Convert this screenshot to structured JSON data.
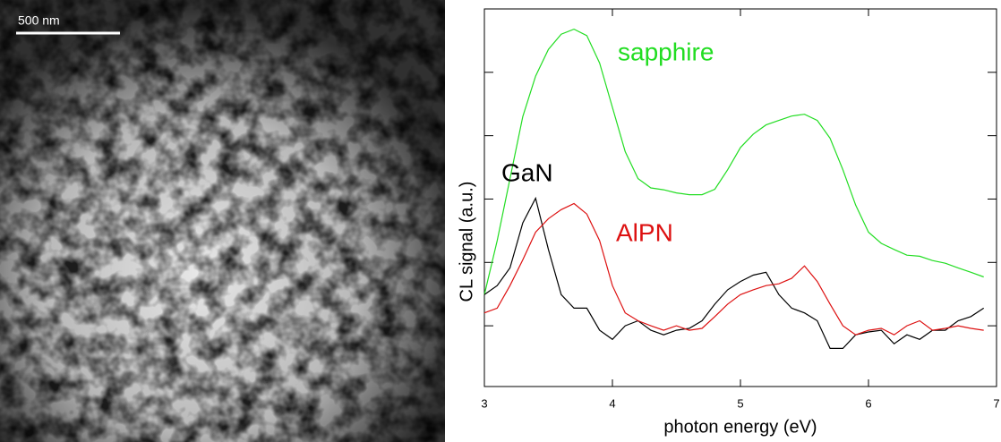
{
  "image": {
    "scale_bar": "500 nm"
  },
  "chart_data": {
    "type": "line",
    "x_label": "photon energy  (eV)",
    "y_label": "CL signal (a.u.)",
    "log_y": true,
    "xlim": [
      3,
      7
    ],
    "xticks": [
      3,
      4,
      5,
      6,
      7
    ],
    "ylim": [
      0.11,
      100000
    ],
    "yticks": [
      1,
      10,
      100,
      1000,
      10000
    ],
    "x": [
      3.0,
      3.1,
      3.2,
      3.3,
      3.4,
      3.5,
      3.6,
      3.7,
      3.8,
      3.9,
      4.0,
      4.1,
      4.2,
      4.3,
      4.4,
      4.5,
      4.6,
      4.7,
      4.8,
      4.9,
      5.0,
      5.1,
      5.2,
      5.3,
      5.4,
      5.5,
      5.6,
      5.7,
      5.8,
      5.9,
      6.0,
      6.1,
      6.2,
      6.3,
      6.4,
      6.5,
      6.6,
      6.7,
      6.8,
      6.9
    ],
    "series": [
      {
        "name": "sapphire",
        "color": "#22dd22",
        "values": [
          3.1,
          22,
          210,
          2000,
          8700,
          23000,
          40000,
          48000,
          38000,
          14000,
          2800,
          560,
          210,
          150,
          140,
          125,
          117,
          117,
          143,
          290,
          650,
          1060,
          1480,
          1740,
          2040,
          2180,
          1740,
          910,
          290,
          80,
          30,
          20,
          16,
          13,
          12.5,
          10.7,
          9.7,
          8.2,
          7.0,
          5.9
        ]
      },
      {
        "name": "GaN",
        "color": "#000000",
        "values": [
          3.1,
          4.3,
          8.2,
          42,
          103,
          16,
          3.1,
          1.9,
          1.9,
          0.85,
          0.61,
          1.0,
          1.2,
          0.85,
          0.72,
          0.85,
          0.91,
          1.2,
          2.2,
          3.7,
          5.0,
          6.3,
          7.0,
          3.1,
          1.9,
          1.6,
          1.2,
          0.44,
          0.44,
          0.72,
          0.8,
          0.85,
          0.52,
          0.72,
          0.61,
          0.85,
          0.85,
          1.2,
          1.4,
          1.9
        ]
      },
      {
        "name": "AlPN",
        "color": "#dd1111",
        "values": [
          1.6,
          1.9,
          4.3,
          11,
          30,
          49,
          68,
          85,
          58,
          22,
          4.3,
          1.6,
          1.2,
          1.0,
          0.85,
          1.0,
          0.85,
          0.91,
          1.4,
          2.2,
          3.1,
          3.7,
          4.3,
          4.6,
          5.6,
          8.8,
          5.0,
          2.2,
          1.0,
          0.72,
          0.85,
          0.91,
          0.72,
          1.0,
          1.2,
          0.85,
          0.91,
          1.0,
          0.91,
          0.85
        ]
      }
    ]
  }
}
